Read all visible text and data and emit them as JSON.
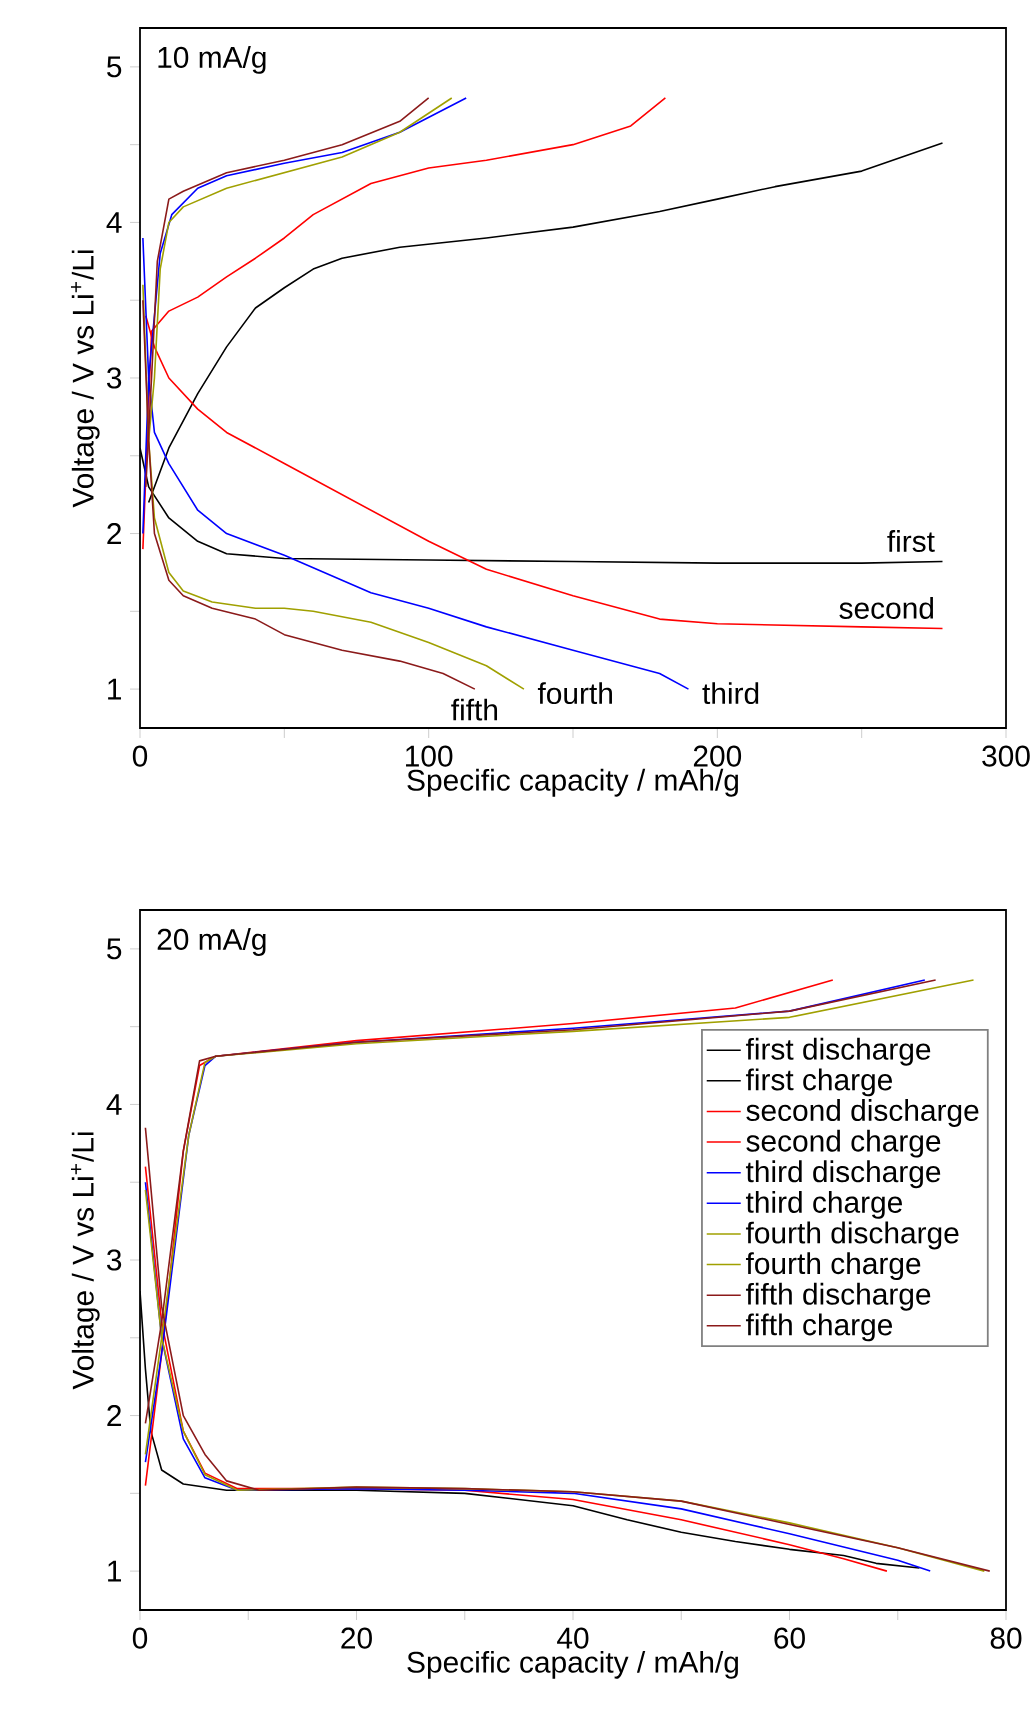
{
  "chart_data": [
    {
      "type": "line",
      "title": "10 mA/g",
      "xlabel": "Specific capacity / mAh/g",
      "ylabel": "Voltage / V vs Li$^{+}$/Li",
      "xlim": [
        0,
        300
      ],
      "ylim": [
        0.75,
        5.25
      ],
      "xticks": [
        0,
        {
          "value": 50,
          "label": null
        },
        100,
        {
          "value": 150,
          "label": null
        },
        200,
        {
          "value": 250,
          "label": null
        },
        300
      ],
      "yticks": [
        1,
        {
          "value": 1.5,
          "label": null
        },
        2,
        {
          "value": 2.5,
          "label": null
        },
        3,
        {
          "value": 3.5,
          "label": null
        },
        4,
        {
          "value": 4.5,
          "label": null
        },
        5
      ],
      "series": [
        {
          "name": "first",
          "color": "#000000",
          "x": [
            0,
            3,
            10,
            20,
            30,
            50,
            100,
            150,
            200,
            250,
            278
          ],
          "values": [
            2.55,
            2.3,
            2.1,
            1.95,
            1.87,
            1.84,
            1.83,
            1.82,
            1.81,
            1.81,
            1.82
          ]
        },
        {
          "color": "#000000",
          "x": [
            3,
            10,
            20,
            30,
            40,
            50,
            60,
            70,
            90,
            120,
            150,
            180,
            200,
            220,
            250,
            278
          ],
          "values": [
            2.2,
            2.55,
            2.9,
            3.2,
            3.45,
            3.58,
            3.7,
            3.77,
            3.84,
            3.9,
            3.97,
            4.07,
            4.15,
            4.23,
            4.33,
            4.51
          ]
        },
        {
          "name": "second",
          "color": "#ff0000",
          "x": [
            2,
            5,
            10,
            20,
            30,
            50,
            70,
            100,
            120,
            150,
            180,
            200,
            250,
            278
          ],
          "values": [
            3.4,
            3.2,
            3.0,
            2.8,
            2.65,
            2.45,
            2.25,
            1.95,
            1.77,
            1.6,
            1.45,
            1.42,
            1.4,
            1.39
          ]
        },
        {
          "color": "#ff0000",
          "x": [
            1,
            4,
            10,
            20,
            30,
            40,
            50,
            60,
            80,
            100,
            120,
            150,
            170,
            182
          ],
          "values": [
            1.9,
            3.3,
            3.43,
            3.52,
            3.65,
            3.77,
            3.9,
            4.05,
            4.25,
            4.35,
            4.4,
            4.5,
            4.62,
            4.8
          ]
        },
        {
          "name": "third",
          "color": "#0000ff",
          "x": [
            1,
            3,
            5,
            10,
            20,
            30,
            50,
            80,
            100,
            120,
            150,
            170,
            180,
            190
          ],
          "values": [
            3.9,
            3.0,
            2.65,
            2.45,
            2.15,
            2.0,
            1.86,
            1.62,
            1.52,
            1.4,
            1.25,
            1.15,
            1.1,
            1.0
          ]
        },
        {
          "color": "#0000ff",
          "x": [
            1,
            3,
            7,
            11,
            20,
            30,
            50,
            70,
            90,
            113
          ],
          "values": [
            2.0,
            3.0,
            3.8,
            4.05,
            4.22,
            4.3,
            4.38,
            4.45,
            4.58,
            4.8
          ]
        },
        {
          "name": "fourth",
          "color": "#a0a000",
          "x": [
            1,
            3,
            5,
            10,
            15,
            25,
            40,
            50,
            60,
            80,
            100,
            120,
            133
          ],
          "values": [
            3.6,
            2.6,
            2.1,
            1.75,
            1.63,
            1.56,
            1.52,
            1.52,
            1.5,
            1.43,
            1.3,
            1.15,
            1.0
          ]
        },
        {
          "color": "#a0a000",
          "x": [
            3,
            5,
            7,
            10,
            15,
            30,
            50,
            70,
            90,
            108
          ],
          "values": [
            2.6,
            3.0,
            3.7,
            4.0,
            4.1,
            4.22,
            4.32,
            4.42,
            4.58,
            4.8
          ]
        },
        {
          "name": "fifth",
          "color": "#8b1a1a",
          "x": [
            1,
            3,
            5,
            10,
            15,
            25,
            40,
            50,
            70,
            90,
            105,
            116
          ],
          "values": [
            3.5,
            2.6,
            2.0,
            1.7,
            1.6,
            1.52,
            1.45,
            1.35,
            1.25,
            1.18,
            1.1,
            1.0
          ]
        },
        {
          "color": "#8b1a1a",
          "x": [
            2,
            4,
            6,
            10,
            15,
            30,
            50,
            70,
            90,
            100
          ],
          "values": [
            2.3,
            3.0,
            3.75,
            4.15,
            4.2,
            4.32,
            4.4,
            4.5,
            4.65,
            4.8
          ]
        }
      ]
    },
    {
      "type": "line",
      "title": "20 mA/g",
      "xlabel": "Specific capacity / mAh/g",
      "ylabel": "Voltage / V vs Li$^{+}$/Li",
      "legend": "right",
      "xlim": [
        0,
        80
      ],
      "ylim": [
        0.75,
        5.25
      ],
      "xticks": [
        0,
        {
          "value": 10,
          "label": null
        },
        20,
        {
          "value": 30,
          "label": null
        },
        40,
        {
          "value": 50,
          "label": null
        },
        60,
        {
          "value": 70,
          "label": null
        },
        80
      ],
      "yticks": [
        1,
        {
          "value": 1.5,
          "label": null
        },
        2,
        {
          "value": 2.5,
          "label": null
        },
        3,
        {
          "value": 3.5,
          "label": null
        },
        4,
        {
          "value": 4.5,
          "label": null
        },
        5
      ],
      "series": [
        {
          "name": "first discharge",
          "color": "#000000",
          "x": [
            0,
            0.5,
            1,
            2,
            4,
            8,
            20,
            30,
            40,
            45,
            50,
            55,
            60,
            65,
            68,
            72
          ],
          "values": [
            2.8,
            2.3,
            1.9,
            1.65,
            1.56,
            1.52,
            1.52,
            1.5,
            1.42,
            1.33,
            1.25,
            1.19,
            1.14,
            1.1,
            1.05,
            1.02
          ]
        },
        {
          "name": "first charge",
          "color": "#000000"
        },
        {
          "name": "second discharge",
          "color": "#ff0000",
          "x": [
            0.5,
            2,
            4,
            6,
            9,
            20,
            30,
            40,
            50,
            60,
            65,
            69
          ],
          "values": [
            3.6,
            2.6,
            1.9,
            1.63,
            1.53,
            1.53,
            1.52,
            1.46,
            1.33,
            1.17,
            1.08,
            1.0
          ]
        },
        {
          "name": "second charge",
          "color": "#ff0000",
          "x": [
            0.5,
            2,
            4,
            5.5,
            7,
            20,
            40,
            55,
            64
          ],
          "values": [
            1.55,
            2.4,
            3.7,
            4.25,
            4.31,
            4.41,
            4.52,
            4.62,
            4.8
          ]
        },
        {
          "name": "third discharge",
          "color": "#0000ff",
          "x": [
            0.5,
            2,
            4,
            6,
            9,
            20,
            30,
            40,
            50,
            60,
            70,
            73
          ],
          "values": [
            3.5,
            2.5,
            1.85,
            1.6,
            1.52,
            1.53,
            1.52,
            1.5,
            1.4,
            1.24,
            1.07,
            1.0
          ]
        },
        {
          "name": "third charge",
          "color": "#0000ff",
          "x": [
            0.5,
            2,
            4.5,
            6,
            7,
            20,
            40,
            60,
            72.5
          ],
          "values": [
            1.7,
            2.4,
            3.8,
            4.25,
            4.31,
            4.4,
            4.49,
            4.6,
            4.8
          ]
        },
        {
          "name": "fourth discharge",
          "color": "#a0a000",
          "x": [
            0.5,
            2,
            4,
            6,
            9,
            20,
            30,
            40,
            50,
            60,
            70,
            78
          ],
          "values": [
            3.45,
            2.5,
            1.9,
            1.62,
            1.52,
            1.54,
            1.53,
            1.51,
            1.45,
            1.31,
            1.15,
            1.0
          ]
        },
        {
          "name": "fourth charge",
          "color": "#a0a000",
          "x": [
            0.5,
            2,
            4.5,
            6,
            7,
            20,
            40,
            60,
            77
          ],
          "values": [
            1.75,
            2.5,
            3.8,
            4.27,
            4.31,
            4.39,
            4.47,
            4.56,
            4.8
          ]
        },
        {
          "name": "fifth discharge",
          "color": "#8b1a1a",
          "x": [
            0.5,
            2,
            4,
            6,
            8,
            11,
            20,
            30,
            40,
            50,
            60,
            70,
            78.5
          ],
          "values": [
            3.85,
            2.7,
            2.0,
            1.75,
            1.58,
            1.52,
            1.54,
            1.53,
            1.51,
            1.45,
            1.3,
            1.15,
            1.0
          ]
        },
        {
          "name": "fifth charge",
          "color": "#8b1a1a",
          "x": [
            0.5,
            2,
            4,
            5.5,
            7,
            20,
            40,
            60,
            73.5
          ],
          "values": [
            1.95,
            2.6,
            3.7,
            4.28,
            4.31,
            4.4,
            4.48,
            4.6,
            4.8
          ]
        }
      ]
    }
  ]
}
